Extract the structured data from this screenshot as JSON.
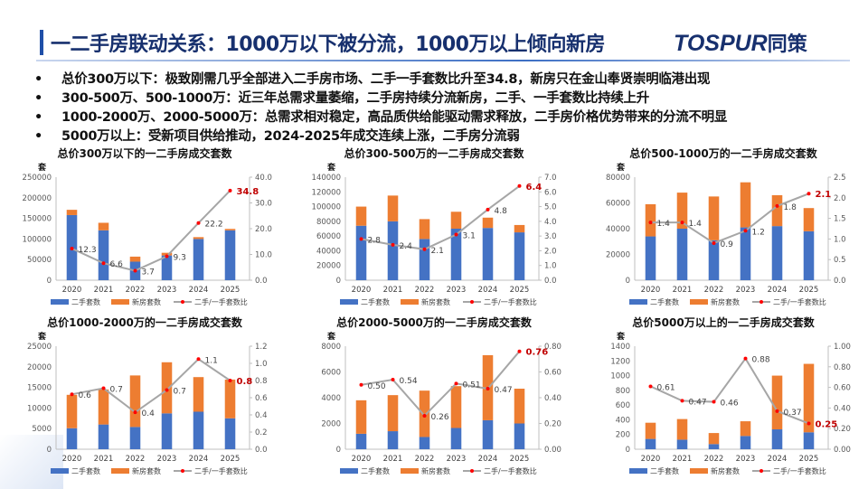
{
  "header": {
    "title": "一二手房联动关系：1000万以下被分流，1000万以上倾向新房",
    "logo_latin": "TOSPUR",
    "logo_cn": "同策"
  },
  "bullets": [
    "总价300万以下：极致刚需几乎全部进入二手房市场、二手一手套数比升至34.8，新房只在金山奉贤崇明临港出现",
    "300-500万、500-1000万：近三年总需求量萎缩，二手房持续分流新房，二手、一手套数比持续上升",
    "1000-2000万、2000-5000万：总需求相对稳定，高品质供给能驱动需求释放，二手房价格优势带来的分流不明显",
    "5000万以上：受新项目供给推动，2024-2025年成交连续上涨，二手房分流弱"
  ],
  "colors": {
    "second": "#4472c4",
    "new": "#ed7d31",
    "ratio_line": "#a6a6a6",
    "ratio_dot": "#ff0000",
    "highlight": "#c00000"
  },
  "chart_data": [
    {
      "type": "bar",
      "title": "总价300万以下的一二手房成交套数",
      "ylabel": "套",
      "categories": [
        "2020",
        "2021",
        "2022",
        "2023",
        "2024",
        "2025"
      ],
      "ylim": [
        0,
        250000
      ],
      "yticks": [
        "0",
        "50000",
        "100000",
        "150000",
        "200000",
        "250000"
      ],
      "y2lim": [
        0,
        40
      ],
      "y2ticks": [
        "0.0",
        "10.0",
        "20.0",
        "30.0",
        "40.0"
      ],
      "series": [
        {
          "name": "二手套数",
          "values": [
            158000,
            121000,
            45000,
            60000,
            100000,
            121000
          ]
        },
        {
          "name": "新房套数",
          "values": [
            12800,
            18300,
            12200,
            6500,
            4500,
            3500
          ]
        },
        {
          "name": "二手/一手套数比",
          "values": [
            12.3,
            6.6,
            3.7,
            9.3,
            22.2,
            34.8
          ]
        }
      ],
      "ratio_labels": [
        "12.3",
        "6.6",
        "3.7",
        "9.3",
        "22.2",
        "34.8"
      ]
    },
    {
      "type": "bar",
      "title": "总价300-500万的一二手房成交套数",
      "ylabel": "套",
      "categories": [
        "2020",
        "2021",
        "2022",
        "2023",
        "2024",
        "2025"
      ],
      "ylim": [
        0,
        140000
      ],
      "yticks": [
        "0",
        "20000",
        "40000",
        "60000",
        "80000",
        "100000",
        "120000",
        "140000"
      ],
      "y2lim": [
        0,
        7
      ],
      "y2ticks": [
        "0.0",
        "1.0",
        "2.0",
        "3.0",
        "4.0",
        "5.0",
        "6.0",
        "7.0"
      ],
      "series": [
        {
          "name": "二手套数",
          "values": [
            74000,
            80000,
            56000,
            70000,
            71000,
            65000
          ]
        },
        {
          "name": "新房套数",
          "values": [
            26000,
            35000,
            27000,
            23000,
            14000,
            10000
          ]
        },
        {
          "name": "二手/一手套数比",
          "values": [
            2.8,
            2.4,
            2.1,
            3.1,
            4.8,
            6.4
          ]
        }
      ],
      "ratio_labels": [
        "2.8",
        "2.4",
        "2.1",
        "3.1",
        "4.8",
        "6.4"
      ]
    },
    {
      "type": "bar",
      "title": "总价500-1000万的一二手房成交套数",
      "ylabel": "套",
      "categories": [
        "2020",
        "2021",
        "2022",
        "2023",
        "2024",
        "2025"
      ],
      "ylim": [
        0,
        80000
      ],
      "yticks": [
        "0",
        "20000",
        "40000",
        "60000",
        "80000"
      ],
      "y2lim": [
        0,
        2.5
      ],
      "y2ticks": [
        "0.0",
        "0.5",
        "1.0",
        "1.5",
        "2.0",
        "2.5"
      ],
      "series": [
        {
          "name": "二手套数",
          "values": [
            34000,
            40000,
            31000,
            41000,
            42000,
            38000
          ]
        },
        {
          "name": "新房套数",
          "values": [
            25000,
            28000,
            34000,
            35000,
            24000,
            18000
          ]
        },
        {
          "name": "二手/一手套数比",
          "values": [
            1.4,
            1.4,
            0.9,
            1.2,
            1.8,
            2.1
          ]
        }
      ],
      "ratio_labels": [
        "1.4",
        "1.4",
        "0.9",
        "1.2",
        "1.8",
        "2.1"
      ]
    },
    {
      "type": "bar",
      "title": "总价1000-2000万的一二手房成交套数",
      "ylabel": "套",
      "categories": [
        "2020",
        "2021",
        "2022",
        "2023",
        "2024",
        "2025"
      ],
      "ylim": [
        0,
        25000
      ],
      "yticks": [
        "0",
        "5000",
        "10000",
        "15000",
        "20000",
        "25000"
      ],
      "y2lim": [
        0,
        1.2
      ],
      "y2ticks": [
        "0.0",
        "0.2",
        "0.4",
        "0.6",
        "0.8",
        "1.0",
        "1.2"
      ],
      "series": [
        {
          "name": "二手套数",
          "values": [
            5100,
            6000,
            5400,
            8700,
            9100,
            7500
          ]
        },
        {
          "name": "新房套数",
          "values": [
            8100,
            8500,
            12500,
            12400,
            8400,
            9400
          ]
        },
        {
          "name": "二手/一手套数比",
          "values": [
            0.64,
            0.71,
            0.43,
            0.69,
            1.05,
            0.8
          ]
        }
      ],
      "ratio_labels": [
        "0.6",
        "0.7",
        "0.4",
        "0.7",
        "1.1",
        "0.8"
      ]
    },
    {
      "type": "bar",
      "title": "总价2000-5000万的一二手房成交套数",
      "ylabel": "套",
      "categories": [
        "2020",
        "2021",
        "2022",
        "2023",
        "2024",
        "2025"
      ],
      "ylim": [
        0,
        8000
      ],
      "yticks": [
        "0",
        "2000",
        "4000",
        "6000",
        "8000"
      ],
      "y2lim": [
        0,
        0.8
      ],
      "y2ticks": [
        "0.00",
        "0.20",
        "0.40",
        "0.60",
        "0.80"
      ],
      "series": [
        {
          "name": "二手套数",
          "values": [
            1200,
            1400,
            950,
            1650,
            2250,
            2000
          ]
        },
        {
          "name": "新房套数",
          "values": [
            2600,
            2800,
            3600,
            3250,
            5050,
            2700
          ]
        },
        {
          "name": "二手/一手套数比",
          "values": [
            0.5,
            0.54,
            0.26,
            0.51,
            0.47,
            0.76
          ]
        }
      ],
      "ratio_labels": [
        "0.50",
        "0.54",
        "0.26",
        "0.51",
        "0.47",
        "0.76"
      ]
    },
    {
      "type": "bar",
      "title": "总价5000万以上的一二手房成交套数",
      "ylabel": "套",
      "categories": [
        "2020",
        "2021",
        "2022",
        "2023",
        "2024",
        "2025"
      ],
      "ylim": [
        0,
        1400
      ],
      "yticks": [
        "0",
        "200",
        "400",
        "600",
        "800",
        "1000",
        "1200",
        "1400"
      ],
      "y2lim": [
        0,
        1.0
      ],
      "y2ticks": [
        "0.00",
        "0.20",
        "0.40",
        "0.60",
        "0.80",
        "1.00"
      ],
      "series": [
        {
          "name": "二手套数",
          "values": [
            140,
            130,
            70,
            180,
            270,
            230
          ]
        },
        {
          "name": "新房套数",
          "values": [
            220,
            280,
            150,
            200,
            730,
            930
          ]
        },
        {
          "name": "二手/一手套数比",
          "values": [
            0.61,
            0.47,
            0.46,
            0.88,
            0.37,
            0.25
          ]
        }
      ],
      "ratio_labels": [
        "0.61",
        "0.47",
        "0.46",
        "0.88",
        "0.37",
        "0.25"
      ]
    }
  ]
}
